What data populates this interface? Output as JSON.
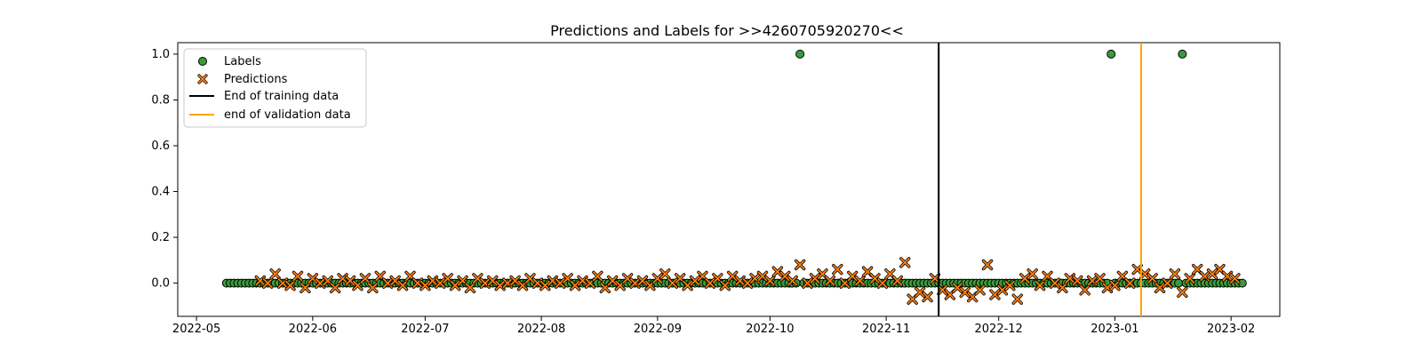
{
  "chart_data": {
    "type": "scatter",
    "title": "Predictions and Labels for >>4260705920270<<",
    "xlabel": "",
    "ylabel": "",
    "x_axis_type": "date",
    "xlim": [
      "2022-04-26",
      "2023-02-14"
    ],
    "ylim": [
      -0.145,
      1.05
    ],
    "grid": false,
    "legend_position": "top-left",
    "x_ticks": [
      "2022-05",
      "2022-06",
      "2022-07",
      "2022-08",
      "2022-09",
      "2022-10",
      "2022-11",
      "2022-12",
      "2023-01",
      "2023-02"
    ],
    "y_ticks": [
      "0.0",
      "0.2",
      "0.4",
      "0.6",
      "0.8",
      "1.0"
    ],
    "legend": [
      {
        "label": "Labels",
        "type": "circle",
        "color": "#3a9b3a"
      },
      {
        "label": "Predictions",
        "type": "x",
        "color": "#ff7f0e"
      },
      {
        "label": "End of training data",
        "type": "line",
        "color": "#000000"
      },
      {
        "label": "end of validation data",
        "type": "line",
        "color": "#ffa500"
      }
    ],
    "reference_lines": [
      {
        "name": "End of training data",
        "date": "2022-11-15",
        "color": "#000000"
      },
      {
        "name": "end of validation data",
        "date": "2023-01-08",
        "color": "#ffa500"
      }
    ],
    "series": [
      {
        "name": "Labels",
        "marker": "circle",
        "color": "#3a9b3a",
        "date_range": [
          "2022-05-09",
          "2023-02-04"
        ],
        "baseline_value": 0.0,
        "positive_dates": [
          "2022-10-09",
          "2022-12-31",
          "2023-01-19"
        ],
        "positive_value": 1.0
      },
      {
        "name": "Predictions",
        "marker": "x",
        "color": "#ff7f0e",
        "date_range": [
          "2022-05-18",
          "2023-02-02"
        ],
        "points": [
          [
            "2022-05-18",
            0.01
          ],
          [
            "2022-05-20",
            0.0
          ],
          [
            "2022-05-22",
            0.04
          ],
          [
            "2022-05-24",
            0.0
          ],
          [
            "2022-05-26",
            -0.01
          ],
          [
            "2022-05-28",
            0.03
          ],
          [
            "2022-05-30",
            -0.02
          ],
          [
            "2022-06-01",
            0.02
          ],
          [
            "2022-06-03",
            0.0
          ],
          [
            "2022-06-05",
            0.01
          ],
          [
            "2022-06-07",
            -0.02
          ],
          [
            "2022-06-09",
            0.02
          ],
          [
            "2022-06-11",
            0.01
          ],
          [
            "2022-06-13",
            -0.01
          ],
          [
            "2022-06-15",
            0.02
          ],
          [
            "2022-06-17",
            -0.02
          ],
          [
            "2022-06-19",
            0.03
          ],
          [
            "2022-06-21",
            0.0
          ],
          [
            "2022-06-23",
            0.01
          ],
          [
            "2022-06-25",
            -0.01
          ],
          [
            "2022-06-27",
            0.03
          ],
          [
            "2022-06-29",
            0.0
          ],
          [
            "2022-07-01",
            -0.01
          ],
          [
            "2022-07-03",
            0.01
          ],
          [
            "2022-07-05",
            0.0
          ],
          [
            "2022-07-07",
            0.02
          ],
          [
            "2022-07-09",
            -0.01
          ],
          [
            "2022-07-11",
            0.01
          ],
          [
            "2022-07-13",
            -0.02
          ],
          [
            "2022-07-15",
            0.02
          ],
          [
            "2022-07-17",
            0.0
          ],
          [
            "2022-07-19",
            0.01
          ],
          [
            "2022-07-21",
            -0.01
          ],
          [
            "2022-07-23",
            0.0
          ],
          [
            "2022-07-25",
            0.01
          ],
          [
            "2022-07-27",
            -0.01
          ],
          [
            "2022-07-29",
            0.02
          ],
          [
            "2022-07-31",
            0.0
          ],
          [
            "2022-08-02",
            -0.01
          ],
          [
            "2022-08-04",
            0.01
          ],
          [
            "2022-08-06",
            0.0
          ],
          [
            "2022-08-08",
            0.02
          ],
          [
            "2022-08-10",
            -0.01
          ],
          [
            "2022-08-12",
            0.01
          ],
          [
            "2022-08-14",
            0.0
          ],
          [
            "2022-08-16",
            0.03
          ],
          [
            "2022-08-18",
            -0.02
          ],
          [
            "2022-08-20",
            0.01
          ],
          [
            "2022-08-22",
            -0.01
          ],
          [
            "2022-08-24",
            0.02
          ],
          [
            "2022-08-26",
            0.0
          ],
          [
            "2022-08-28",
            0.01
          ],
          [
            "2022-08-30",
            -0.01
          ],
          [
            "2022-09-01",
            0.02
          ],
          [
            "2022-09-03",
            0.04
          ],
          [
            "2022-09-05",
            0.0
          ],
          [
            "2022-09-07",
            0.02
          ],
          [
            "2022-09-09",
            -0.01
          ],
          [
            "2022-09-11",
            0.01
          ],
          [
            "2022-09-13",
            0.03
          ],
          [
            "2022-09-15",
            0.0
          ],
          [
            "2022-09-17",
            0.02
          ],
          [
            "2022-09-19",
            -0.01
          ],
          [
            "2022-09-21",
            0.03
          ],
          [
            "2022-09-23",
            0.01
          ],
          [
            "2022-09-25",
            0.0
          ],
          [
            "2022-09-27",
            0.02
          ],
          [
            "2022-09-29",
            0.03
          ],
          [
            "2022-10-01",
            0.01
          ],
          [
            "2022-10-03",
            0.05
          ],
          [
            "2022-10-05",
            0.03
          ],
          [
            "2022-10-07",
            0.01
          ],
          [
            "2022-10-09",
            0.08
          ],
          [
            "2022-10-11",
            0.0
          ],
          [
            "2022-10-13",
            0.02
          ],
          [
            "2022-10-15",
            0.04
          ],
          [
            "2022-10-17",
            0.01
          ],
          [
            "2022-10-19",
            0.06
          ],
          [
            "2022-10-21",
            0.0
          ],
          [
            "2022-10-23",
            0.03
          ],
          [
            "2022-10-25",
            0.01
          ],
          [
            "2022-10-27",
            0.05
          ],
          [
            "2022-10-29",
            0.02
          ],
          [
            "2022-10-31",
            0.0
          ],
          [
            "2022-11-02",
            0.04
          ],
          [
            "2022-11-04",
            0.01
          ],
          [
            "2022-11-06",
            0.09
          ],
          [
            "2022-11-08",
            -0.07
          ],
          [
            "2022-11-10",
            -0.04
          ],
          [
            "2022-11-12",
            -0.06
          ],
          [
            "2022-11-14",
            0.02
          ],
          [
            "2022-11-16",
            -0.03
          ],
          [
            "2022-11-18",
            -0.05
          ],
          [
            "2022-11-20",
            -0.02
          ],
          [
            "2022-11-22",
            -0.04
          ],
          [
            "2022-11-24",
            -0.06
          ],
          [
            "2022-11-26",
            -0.03
          ],
          [
            "2022-11-28",
            0.08
          ],
          [
            "2022-11-30",
            -0.05
          ],
          [
            "2022-12-02",
            -0.03
          ],
          [
            "2022-12-04",
            -0.01
          ],
          [
            "2022-12-06",
            -0.07
          ],
          [
            "2022-12-08",
            0.02
          ],
          [
            "2022-12-10",
            0.04
          ],
          [
            "2022-12-12",
            -0.01
          ],
          [
            "2022-12-14",
            0.03
          ],
          [
            "2022-12-16",
            0.0
          ],
          [
            "2022-12-18",
            -0.02
          ],
          [
            "2022-12-20",
            0.02
          ],
          [
            "2022-12-22",
            0.01
          ],
          [
            "2022-12-24",
            -0.03
          ],
          [
            "2022-12-26",
            0.01
          ],
          [
            "2022-12-28",
            0.02
          ],
          [
            "2022-12-30",
            -0.02
          ],
          [
            "2023-01-01",
            -0.01
          ],
          [
            "2023-01-03",
            0.03
          ],
          [
            "2023-01-05",
            0.0
          ],
          [
            "2023-01-07",
            0.06
          ],
          [
            "2023-01-09",
            0.04
          ],
          [
            "2023-01-11",
            0.02
          ],
          [
            "2023-01-13",
            -0.02
          ],
          [
            "2023-01-15",
            0.0
          ],
          [
            "2023-01-17",
            0.04
          ],
          [
            "2023-01-19",
            -0.04
          ],
          [
            "2023-01-21",
            0.02
          ],
          [
            "2023-01-23",
            0.06
          ],
          [
            "2023-01-25",
            0.03
          ],
          [
            "2023-01-27",
            0.04
          ],
          [
            "2023-01-29",
            0.06
          ],
          [
            "2023-01-31",
            0.03
          ],
          [
            "2023-02-02",
            0.02
          ]
        ]
      }
    ]
  }
}
